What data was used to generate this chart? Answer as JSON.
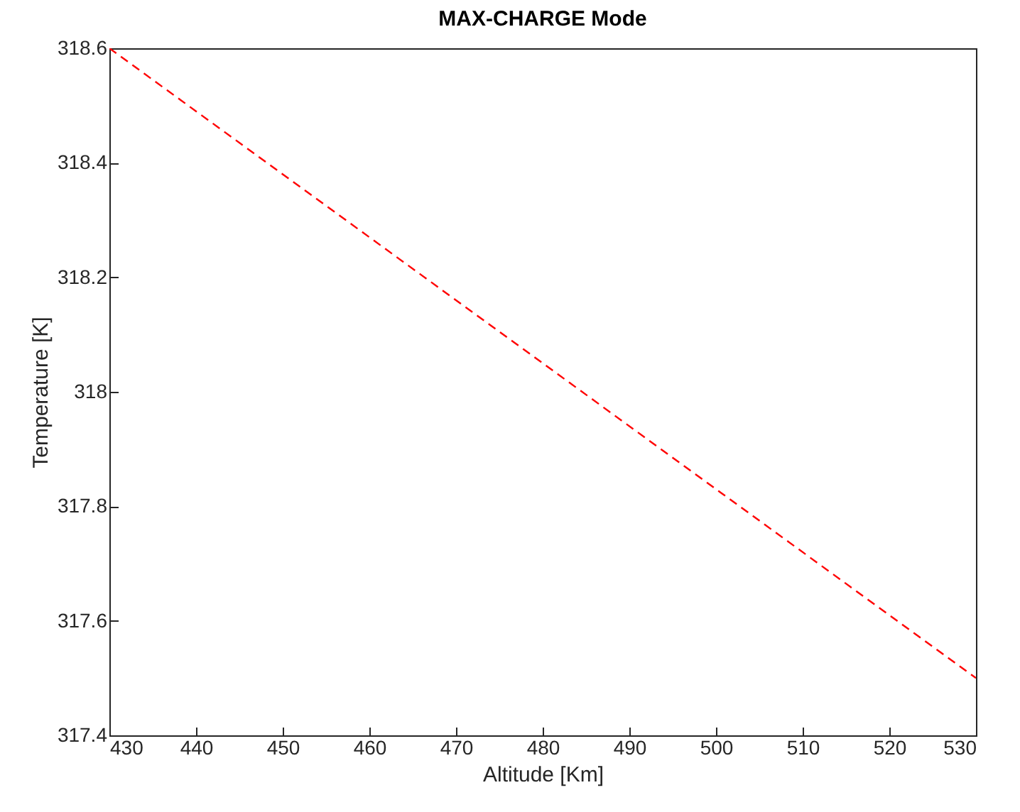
{
  "chart_data": {
    "type": "line",
    "title": "MAX-CHARGE Mode",
    "xlabel": "Altitude [Km]",
    "ylabel": "Temperature [K]",
    "x": [
      430,
      530
    ],
    "series": [
      {
        "color": "#ff0000",
        "values": [
          318.6,
          317.5
        ]
      }
    ],
    "xlim": [
      430,
      530
    ],
    "xticks": [
      430,
      440,
      450,
      460,
      470,
      480,
      490,
      500,
      510,
      520,
      530
    ],
    "ylim": [
      317.4,
      318.6
    ],
    "yticks": [
      317.4,
      317.6,
      317.8,
      318,
      318.2,
      318.4,
      318.6
    ],
    "grid": false,
    "marker": "none",
    "line_style": "dashed"
  }
}
